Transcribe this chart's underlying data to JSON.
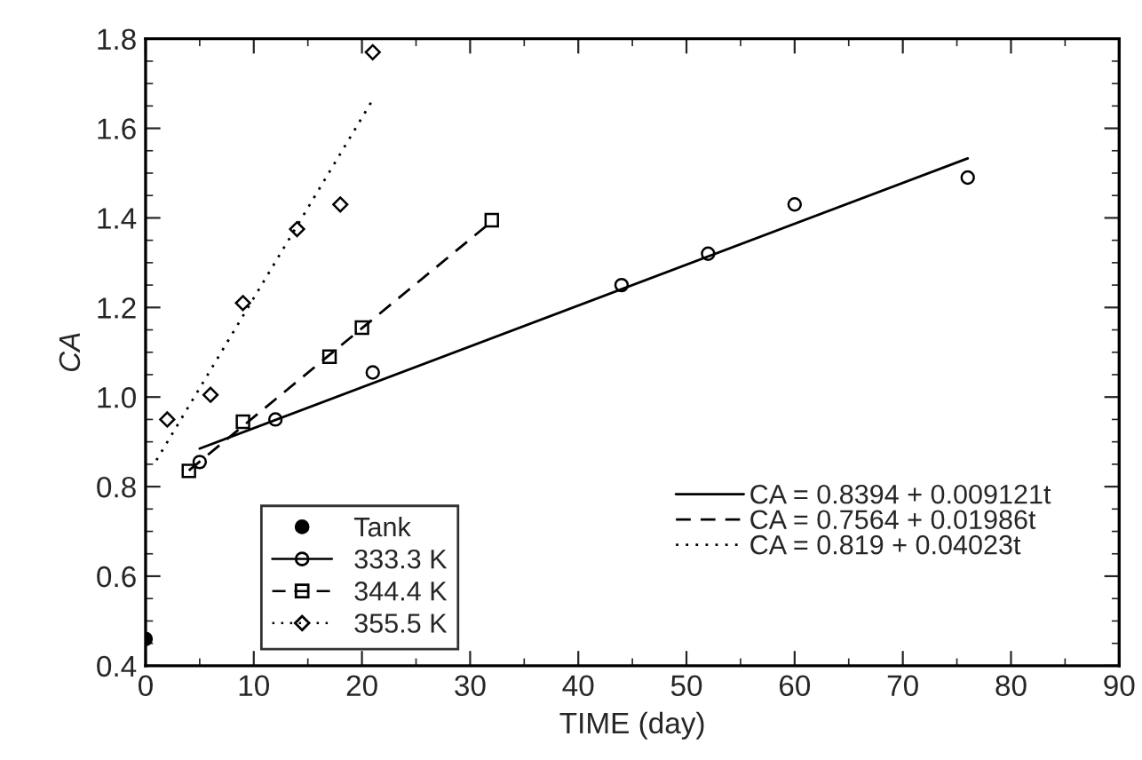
{
  "chart_data": {
    "type": "scatter",
    "xlabel": "TIME (day)",
    "ylabel": "CA",
    "xlim": [
      0,
      90
    ],
    "xticks": [
      0,
      10,
      20,
      30,
      40,
      50,
      60,
      70,
      80,
      90
    ],
    "ylim": [
      0.4,
      1.8
    ],
    "yticks": [
      {
        "value": 0.4,
        "label": "0.4"
      },
      {
        "value": 0.6,
        "label": "0.6"
      },
      {
        "value": 0.8,
        "label": "0.8"
      },
      {
        "value": 1.0,
        "label": "1.0"
      },
      {
        "value": 1.2,
        "label": "1.2"
      },
      {
        "value": 1.4,
        "label": "1.4"
      },
      {
        "value": 1.6,
        "label": "1.6"
      },
      {
        "value": 1.8,
        "label": "1.8"
      }
    ],
    "grid": false,
    "legend": "bottom",
    "series": [
      {
        "name": "Tank",
        "marker": "filled_circle",
        "color": "#000000",
        "x": [
          0
        ],
        "values": [
          0.46
        ]
      },
      {
        "name": "333.3 K",
        "marker": "circle",
        "line_style": "solid",
        "color": "#000000",
        "x": [
          5,
          12,
          21,
          44,
          52,
          60,
          76
        ],
        "values": [
          0.855,
          0.95,
          1.055,
          1.25,
          1.32,
          1.43,
          1.49
        ]
      },
      {
        "name": "344.4 K",
        "marker": "square",
        "line_style": "dashed",
        "color": "#000000",
        "x": [
          4,
          9,
          17,
          20,
          32
        ],
        "values": [
          0.835,
          0.945,
          1.09,
          1.155,
          1.395
        ]
      },
      {
        "name": "355.5 K",
        "marker": "diamond",
        "line_style": "dotted",
        "color": "#000000",
        "x": [
          2,
          6,
          9,
          14,
          18,
          21
        ],
        "values": [
          0.95,
          1.005,
          1.21,
          1.375,
          1.43,
          1.77
        ]
      },
      {
        "name": "CA = 0.8394 + 0.009121t",
        "type": "line",
        "line_style": "solid",
        "color": "#000000",
        "x": [
          5,
          76
        ],
        "values": [
          0.885,
          1.533
        ]
      },
      {
        "name": "CA = 0.7564 + 0.01986t",
        "type": "line",
        "line_style": "dashed",
        "color": "#000000",
        "x": [
          4,
          32
        ],
        "values": [
          0.836,
          1.392
        ]
      },
      {
        "name": "CA = 0.819 + 0.04023t",
        "type": "line",
        "line_style": "dotted",
        "color": "#000000",
        "x": [
          1,
          21
        ],
        "values": [
          0.859,
          1.664
        ]
      }
    ]
  }
}
